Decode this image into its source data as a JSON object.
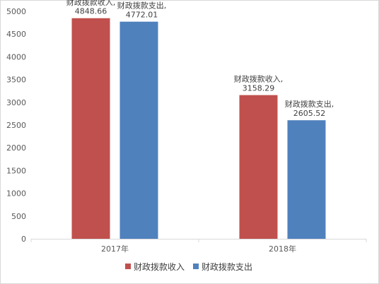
{
  "chart_data": {
    "type": "bar",
    "categories": [
      "2017年",
      "2018年"
    ],
    "series": [
      {
        "name": "财政拨款收入",
        "values": [
          4848.66,
          3158.29
        ],
        "color": "#c0504d",
        "data_labels": [
          "财政拨款收入,\n4848.66",
          "财政拨款收入,\n3158.29"
        ]
      },
      {
        "name": "财政拨款支出",
        "values": [
          4772.01,
          2605.52
        ],
        "color": "#4f81bd",
        "data_labels": [
          "财政拨款支出,\n4772.01",
          "财政拨款支出,\n2605.52"
        ]
      }
    ],
    "ylim": [
      0,
      5000
    ],
    "yticks": [
      0,
      500,
      1000,
      1500,
      2000,
      2500,
      3000,
      3500,
      4000,
      4500,
      5000
    ],
    "grid": false,
    "legend": "bottom"
  }
}
